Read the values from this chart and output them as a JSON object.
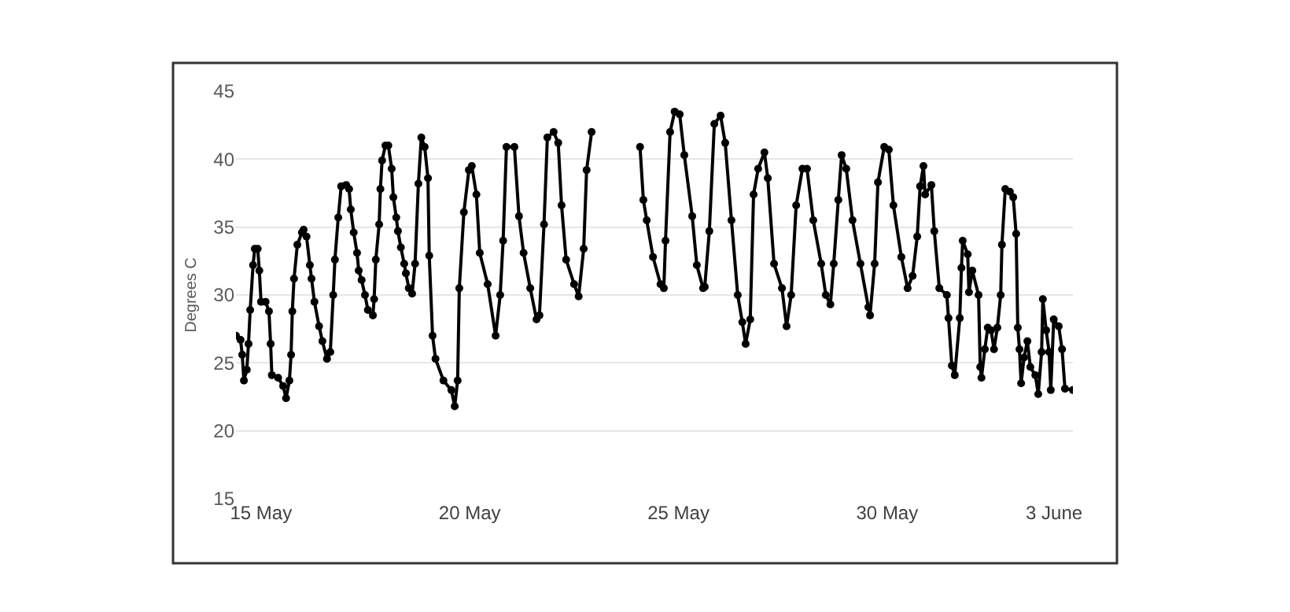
{
  "chart_data": {
    "type": "line",
    "ylabel": "Degrees C",
    "x": [
      "--05-14T09:36",
      "--05-14T12:14",
      "--05-14T13:12",
      "--05-14T14:10",
      "--05-14T15:50",
      "--05-14T16:48",
      "--05-14T17:46",
      "--05-14T19:26",
      "--05-14T20:24",
      "--05-14T22:05",
      "--05-14T23:02",
      "--05-15T00:00",
      "--05-15T02:38",
      "--05-15T04:34",
      "--05-15T05:31",
      "--05-15T06:14",
      "--05-15T09:50",
      "--05-15T12:43",
      "--05-15T14:24",
      "--05-15T16:19",
      "--05-15T17:17",
      "--05-15T18:00",
      "--05-15T18:58",
      "--05-15T20:53",
      "--05-15T23:31",
      "--05-16T00:29",
      "--05-16T02:10",
      "--05-16T04:05",
      "--05-16T05:02",
      "--05-16T06:43",
      "--05-16T09:22",
      "--05-16T11:17",
      "--05-16T13:55",
      "--05-16T15:50",
      "--05-16T17:31",
      "--05-16T18:29",
      "--05-16T20:24",
      "--05-16T22:05",
      "--05-17T00:58",
      "--05-17T02:38",
      "--05-17T03:36",
      "--05-17T05:17",
      "--05-17T07:12",
      "--05-17T08:10",
      "--05-17T09:50",
      "--05-17T11:46",
      "--05-17T13:26",
      "--05-17T16:19",
      "--05-17T17:02",
      "--05-17T18:00",
      "--05-17T19:55",
      "--05-17T20:38",
      "--05-17T21:36",
      "--05-17T23:31",
      "--05-18T01:12",
      "--05-18T03:07",
      "--05-18T04:05",
      "--05-18T05:46",
      "--05-18T06:43",
      "--05-18T08:24",
      "--05-18T10:19",
      "--05-18T11:17",
      "--05-18T12:58",
      "--05-18T14:53",
      "--05-18T16:34",
      "--05-18T18:29",
      "--05-18T20:10",
      "--05-18T22:05",
      "--05-19T00:00",
      "--05-19T00:43",
      "--05-19T02:38",
      "--05-19T04:19",
      "--05-19T08:53",
      "--05-19T13:26",
      "--05-19T15:22",
      "--05-19T17:02",
      "--05-19T18:00",
      "--05-19T20:38",
      "--05-19T23:31",
      "--05-20T01:12",
      "--05-20T03:50",
      "--05-20T05:46",
      "--05-20T10:19",
      "--05-20T14:53",
      "--05-20T17:31",
      "--05-20T19:12",
      "--05-20T21:07",
      "--05-21T01:41",
      "--05-21T04:19",
      "--05-21T06:58",
      "--05-21T10:48",
      "--05-21T14:24",
      "--05-21T16:05",
      "--05-21T18:43",
      "--05-21T20:38",
      "--05-22T00:14",
      "--05-22T02:53",
      "--05-22T04:48",
      "--05-22T07:26",
      "--05-22T12:00",
      "--05-22T14:38",
      "--05-22T17:31",
      "--05-22T19:12",
      "--05-22T22:05",
      "--05-23T12:00",
      "--05-24T01:55",
      "--05-24T03:50",
      "--05-24T05:46",
      "--05-24T09:22",
      "--05-24T13:41",
      "--05-24T15:36",
      "--05-24T16:34",
      "--05-24T19:12",
      "--05-24T21:50",
      "--05-25T00:43",
      "--05-25T03:22",
      "--05-25T07:55",
      "--05-25T10:34",
      "--05-25T14:10",
      "--05-25T15:07",
      "--05-25T17:46",
      "--05-25T20:38",
      "--05-26T00:14",
      "--05-26T02:53",
      "--05-26T06:29",
      "--05-26T10:05",
      "--05-26T12:43",
      "--05-26T14:38",
      "--05-26T17:17",
      "--05-26T19:12",
      "--05-26T21:50",
      "--05-27T01:26",
      "--05-27T03:22",
      "--05-27T06:58",
      "--05-27T11:31",
      "--05-27T14:10",
      "--05-27T16:48",
      "--05-27T19:41",
      "--05-27T23:17",
      "--05-28T01:55",
      "--05-28T05:31",
      "--05-28T10:05",
      "--05-28T12:43",
      "--05-28T15:22",
      "--05-28T17:17",
      "--05-28T19:55",
      "--05-28T21:50",
      "--05-29T00:29",
      "--05-29T04:05",
      "--05-29T08:38",
      "--05-29T13:12",
      "--05-29T14:10",
      "--05-29T16:48",
      "--05-29T18:43",
      "--05-29T22:19",
      "--05-30T00:58",
      "--05-30T03:36",
      "--05-30T08:10",
      "--05-30T11:46",
      "--05-30T14:38",
      "--05-30T17:17",
      "--05-30T18:58",
      "--05-30T20:53",
      "--05-30T21:50",
      "--05-31T01:26",
      "--05-31T03:07",
      "--05-31T06:00",
      "--05-31T10:19",
      "--05-31T11:17",
      "--05-31T13:12",
      "--05-31T14:53",
      "--05-31T17:46",
      "--05-31T18:43",
      "--05-31T19:26",
      "--05-31T22:19",
      "--05-31T23:02",
      "--06-01T00:58",
      "--06-01T04:34",
      "--06-01T05:31",
      "--06-01T06:14",
      "--06-01T08:10",
      "--06-01T09:50",
      "--06-01T11:46",
      "--06-01T13:26",
      "--06-01T15:22",
      "--06-01T17:17",
      "--06-01T18:00",
      "--06-01T19:55",
      "--06-01T22:34",
      "--06-02T00:29",
      "--06-02T02:10",
      "--06-02T03:07",
      "--06-02T04:05",
      "--06-02T05:02",
      "--06-02T06:43",
      "--06-02T08:38",
      "--06-02T10:19",
      "--06-02T13:12",
      "--06-02T14:53",
      "--06-02T16:48",
      "--06-02T17:31",
      "--06-02T19:26",
      "--06-02T21:07",
      "--06-02T22:05",
      "--06-02T23:46",
      "--06-03T02:38",
      "--06-03T04:34",
      "--06-03T06:14",
      "--06-03T10:48"
    ],
    "series": [
      {
        "color": "#000000",
        "values": [
          27.0,
          26.7,
          25.6,
          23.7,
          24.5,
          26.4,
          28.9,
          32.2,
          33.4,
          33.4,
          31.8,
          29.5,
          29.5,
          28.8,
          26.4,
          24.1,
          23.9,
          23.3,
          22.4,
          23.7,
          25.6,
          28.8,
          31.2,
          33.7,
          34.6,
          34.8,
          34.3,
          32.2,
          31.2,
          29.5,
          27.7,
          26.6,
          25.3,
          25.8,
          30.0,
          32.6,
          35.7,
          38.0,
          38.1,
          37.8,
          36.3,
          34.6,
          33.1,
          31.8,
          31.1,
          30.0,
          28.9,
          28.5,
          29.7,
          32.6,
          35.2,
          37.8,
          39.9,
          41.0,
          41.0,
          39.3,
          37.2,
          35.7,
          34.7,
          33.5,
          32.3,
          31.6,
          30.5,
          30.1,
          32.3,
          38.2,
          41.6,
          40.9,
          38.6,
          32.9,
          27.0,
          25.3,
          23.7,
          23.0,
          21.8,
          23.7,
          30.5,
          36.1,
          39.2,
          39.5,
          37.4,
          33.1,
          30.8,
          27.0,
          30.0,
          34.0,
          40.9,
          40.9,
          35.8,
          33.1,
          30.5,
          28.2,
          28.5,
          35.2,
          41.6,
          42.0,
          41.2,
          36.6,
          32.6,
          30.8,
          29.9,
          33.4,
          39.2,
          42.0,
          null,
          40.9,
          37.0,
          35.5,
          32.8,
          30.8,
          30.5,
          34.0,
          42.0,
          43.5,
          43.3,
          40.3,
          35.8,
          32.2,
          30.5,
          30.6,
          34.7,
          42.6,
          43.2,
          41.2,
          35.5,
          30.0,
          28.0,
          26.4,
          28.2,
          37.4,
          39.3,
          40.5,
          38.6,
          32.3,
          30.5,
          27.7,
          30.0,
          36.6,
          39.3,
          39.3,
          35.5,
          32.3,
          30.0,
          29.3,
          32.3,
          37.0,
          40.3,
          39.3,
          35.5,
          32.3,
          29.1,
          28.5,
          32.3,
          38.3,
          40.9,
          40.7,
          36.6,
          32.8,
          30.5,
          31.4,
          34.3,
          38.0,
          39.5,
          37.4,
          38.1,
          34.7,
          30.5,
          30.0,
          28.3,
          24.8,
          24.1,
          28.3,
          32.0,
          34.0,
          33.0,
          30.2,
          31.8,
          30.0,
          24.7,
          23.9,
          26.0,
          27.6,
          27.4,
          26.0,
          27.6,
          30.0,
          33.7,
          37.8,
          37.6,
          37.2,
          34.5,
          27.6,
          26.0,
          23.5,
          25.4,
          26.6,
          24.7,
          24.1,
          22.7,
          25.8,
          29.7,
          27.4,
          25.8,
          23.0,
          28.2,
          27.7,
          26.0,
          23.1,
          23.0
        ]
      }
    ],
    "xlim": [
      "--05-14T09:36",
      "--06-03T10:48"
    ],
    "xticks": [
      {
        "value": "--05-15",
        "label": "15 May"
      },
      {
        "value": "--05-20",
        "label": "20 May"
      },
      {
        "value": "--05-25",
        "label": "25 May"
      },
      {
        "value": "--05-30",
        "label": "30 May"
      },
      {
        "value": "--06-03",
        "label": "3 June"
      }
    ],
    "ylim": [
      15,
      45
    ],
    "yticks": [
      15,
      20,
      25,
      30,
      35,
      40,
      45
    ],
    "grid": "y",
    "marker": "circle",
    "line_style": "solid"
  }
}
